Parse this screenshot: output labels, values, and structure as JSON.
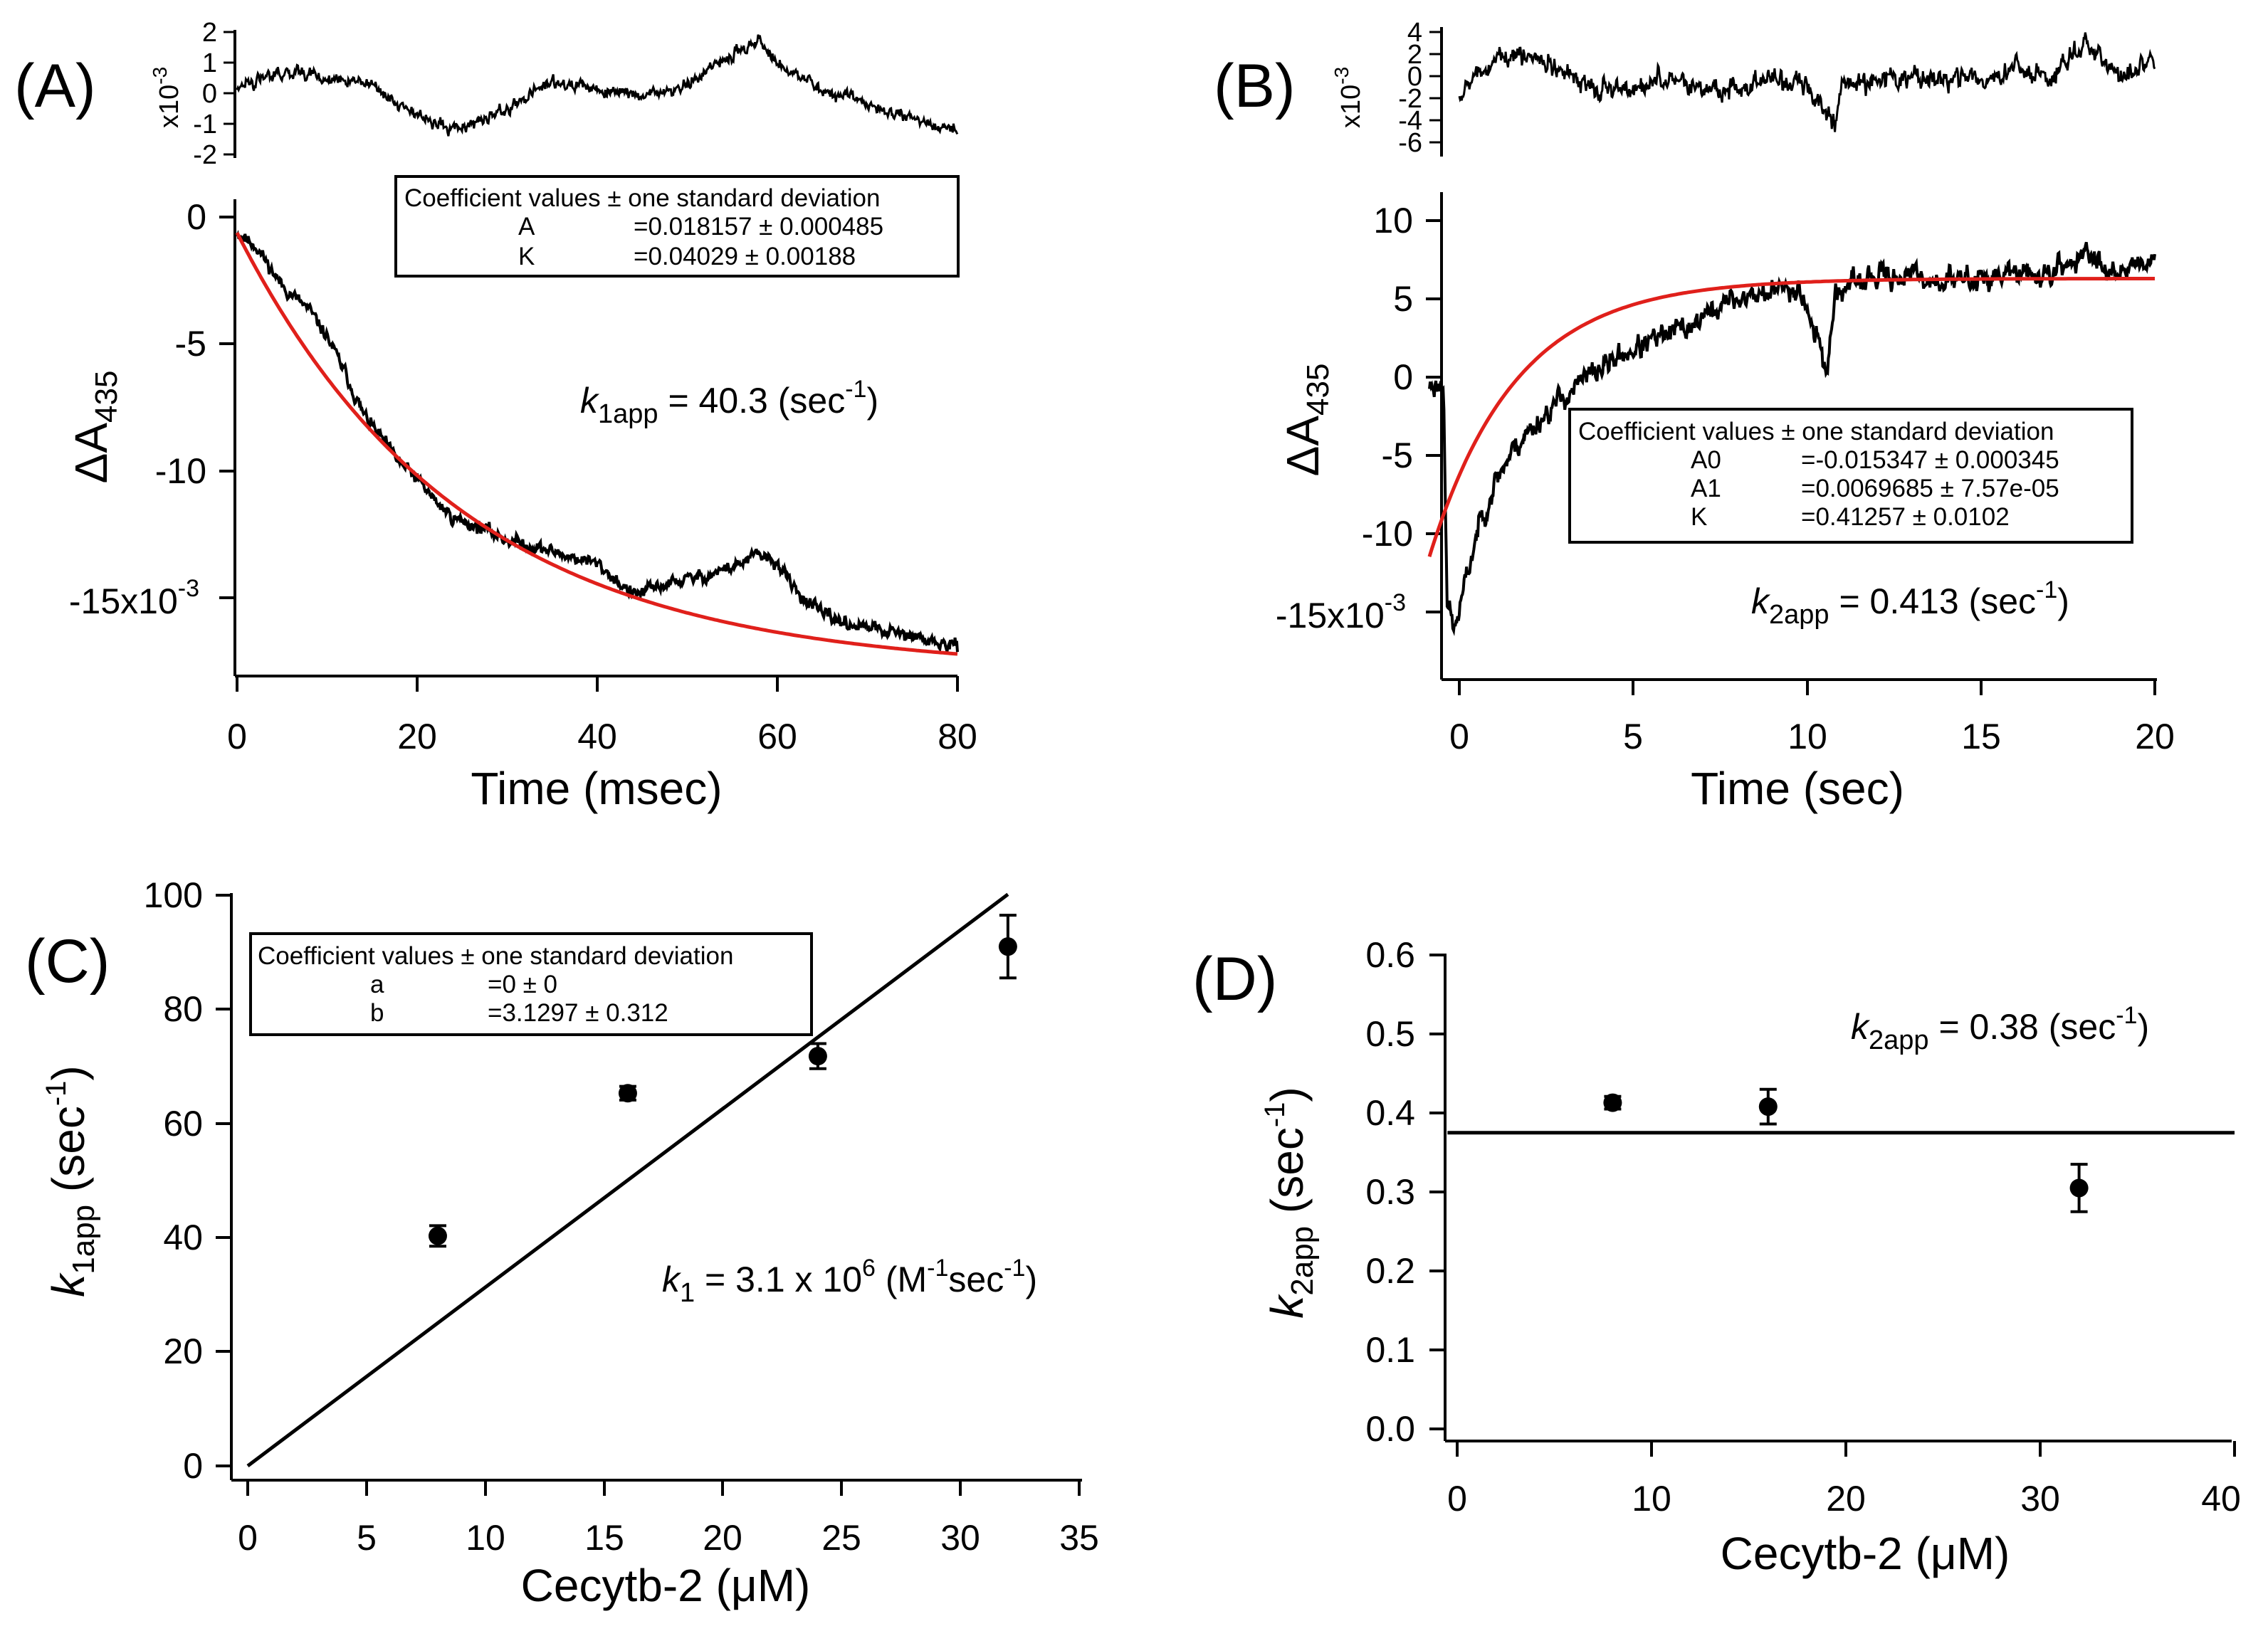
{
  "panels": {
    "A": {
      "label": "(A)",
      "resid_exp": "x10",
      "resid_exp_sup": "-3",
      "resid_ticks": [
        "2",
        "1",
        "0",
        "-1",
        "-2"
      ],
      "y_ticks": [
        "0",
        "-5",
        "-10"
      ],
      "y_tick_last": "-15x10",
      "y_tick_last_sup": "-3",
      "x_ticks": [
        "0",
        "20",
        "40",
        "60",
        "80"
      ],
      "xlabel": "Time (msec)",
      "ylabel_main": "ΔA",
      "ylabel_sub": "435",
      "box": {
        "header": "Coefficient values ± one standard deviation",
        "rows": [
          {
            "name": "A",
            "value": "=0.018157 ± 0.000485"
          },
          {
            "name": "K",
            "value": "=0.04029 ± 0.00188"
          }
        ]
      },
      "ann": {
        "k": "k",
        "sub": "1app",
        "mid": " = 40.3 (sec",
        "sup": "-1",
        "end": ")"
      }
    },
    "B": {
      "label": "(B)",
      "resid_exp": "x10",
      "resid_exp_sup": "-3",
      "resid_ticks": [
        "4",
        "2",
        "0",
        "-2",
        "-4",
        "-6"
      ],
      "y_ticks": [
        "10",
        "5",
        "0",
        "-5",
        "-10"
      ],
      "y_tick_last": "-15x10",
      "y_tick_last_sup": "-3",
      "x_ticks": [
        "0",
        "5",
        "10",
        "15",
        "20"
      ],
      "xlabel": "Time (sec)",
      "ylabel_main": "ΔA",
      "ylabel_sub": "435",
      "box": {
        "header": "Coefficient values ± one standard deviation",
        "rows": [
          {
            "name": "A0",
            "value": "=-0.015347 ± 0.000345"
          },
          {
            "name": "A1",
            "value": "=0.0069685 ± 7.57e-05"
          },
          {
            "name": "K",
            "value": "=0.41257 ± 0.0102"
          }
        ]
      },
      "ann": {
        "k": "k",
        "sub": "2app",
        "mid": " = 0.413 (sec",
        "sup": "-1",
        "end": ")"
      }
    },
    "C": {
      "label": "(C)",
      "y_ticks": [
        "100",
        "80",
        "60",
        "40",
        "20",
        "0"
      ],
      "x_ticks": [
        "0",
        "5",
        "10",
        "15",
        "20",
        "25",
        "30",
        "35"
      ],
      "xlabel": "Cecytb-2 (μM)",
      "ylabel_k": "k",
      "ylabel_sub": "1app",
      "ylabel_rest": " (sec",
      "ylabel_sup": "-1",
      "ylabel_end": ")",
      "box": {
        "header": "Coefficient values ± one standard deviation",
        "rows": [
          {
            "name": "a",
            "value": "=0 ± 0"
          },
          {
            "name": "b",
            "value": "=3.1297 ± 0.312"
          }
        ]
      },
      "ann": {
        "k": "k",
        "sub": "1",
        "mid": " = 3.1 x 10",
        "sup": "6",
        "mid2": " (M",
        "sup2": "-1",
        "mid3": "sec",
        "sup3": "-1",
        "end": ")"
      }
    },
    "D": {
      "label": "(D)",
      "y_ticks": [
        "0.6",
        "0.5",
        "0.4",
        "0.3",
        "0.2",
        "0.1",
        "0.0"
      ],
      "x_ticks": [
        "0",
        "10",
        "20",
        "30",
        "40"
      ],
      "xlabel": "Cecytb-2 (μM)",
      "ylabel_k": "k",
      "ylabel_sub": "2app",
      "ylabel_rest": " (sec",
      "ylabel_sup": "-1",
      "ylabel_end": ")",
      "ann": {
        "k": "k",
        "sub": "2app",
        "mid": " = 0.38 (sec",
        "sup": "-1",
        "end": ")"
      }
    }
  },
  "colors": {
    "data": "#000000",
    "fit": "#e0201b"
  },
  "chart_data": [
    {
      "panel": "A",
      "type": "line",
      "xlabel": "Time (msec)",
      "ylabel": "ΔA435",
      "xlim": [
        0,
        80
      ],
      "ylim": [
        -0.0182,
        0.0005
      ],
      "fit": {
        "model": "A*(exp(-K*t)-1)",
        "A": 0.018157,
        "K": 0.04029
      },
      "trace_keypoints": {
        "x": [
          0,
          2,
          5,
          8,
          10,
          12,
          14,
          16,
          18,
          20,
          22,
          24,
          27,
          30,
          35,
          40,
          44,
          48,
          52,
          56,
          58,
          60,
          62,
          65,
          68,
          72,
          76,
          80
        ],
        "y": [
          0,
          -0.0005,
          -0.0022,
          -0.0032,
          -0.0043,
          -0.0058,
          -0.0075,
          -0.0085,
          -0.0095,
          -0.0102,
          -0.0111,
          -0.0118,
          -0.0122,
          -0.0127,
          -0.0132,
          -0.0137,
          -0.015,
          -0.0145,
          -0.0142,
          -0.0137,
          -0.0133,
          -0.0137,
          -0.0148,
          -0.0158,
          -0.0162,
          -0.0165,
          -0.0168,
          -0.0172
        ]
      },
      "residual": {
        "ylim": [
          -2.2,
          2.4
        ],
        "unit": "x10^-3",
        "x": [
          0,
          5,
          10,
          15,
          20,
          25,
          30,
          35,
          40,
          45,
          50,
          55,
          58,
          60,
          65,
          70,
          75,
          80
        ],
        "y": [
          0.4,
          0.8,
          0.6,
          0.4,
          -0.7,
          -1.2,
          -0.5,
          0.5,
          0.2,
          0,
          0.4,
          1.5,
          1.9,
          1.2,
          0.2,
          -0.3,
          -0.8,
          -1.2
        ]
      }
    },
    {
      "panel": "B",
      "type": "line",
      "xlabel": "Time (sec)",
      "ylabel": "ΔA435",
      "xlim": [
        -0.4,
        20
      ],
      "ylim": [
        -0.019,
        0.0125
      ],
      "fit": {
        "model": "A0*exp(-K*t)+A1",
        "A0": -0.015347,
        "A1": 0.0069685,
        "K": 0.41257
      },
      "trace_keypoints": {
        "x": [
          -0.4,
          0,
          0.1,
          0.3,
          0.6,
          1,
          1.5,
          2,
          3,
          4,
          5,
          6,
          7,
          8,
          9,
          10,
          10.8,
          11,
          12,
          13,
          14,
          15,
          16,
          17,
          18,
          19,
          20
        ],
        "y": [
          0.0,
          0.0,
          -0.014,
          -0.016,
          -0.013,
          -0.009,
          -0.006,
          -0.004,
          -0.0015,
          0.0005,
          0.002,
          0.003,
          0.004,
          0.0055,
          0.006,
          0.0065,
          0.001,
          0.006,
          0.007,
          0.0072,
          0.0068,
          0.007,
          0.0073,
          0.0072,
          0.0085,
          0.0075,
          0.0085
        ]
      },
      "residual": {
        "ylim": [
          -6.8,
          4.5
        ],
        "unit": "x10^-3",
        "x": [
          0,
          1,
          2,
          3,
          4,
          5,
          6,
          7,
          8,
          9,
          10,
          10.8,
          11,
          12,
          13,
          14,
          15,
          16,
          17,
          18,
          19,
          20
        ],
        "y": [
          -1,
          1.5,
          2,
          1,
          -1,
          -0.5,
          0,
          -1,
          -1,
          0,
          -0.5,
          -4,
          -0.5,
          0,
          0,
          0,
          0,
          1,
          0,
          3,
          0,
          2
        ]
      }
    },
    {
      "panel": "C",
      "type": "scatter",
      "xlabel": "Cecytb-2 (μM)",
      "ylabel": "k1app (sec-1)",
      "xlim": [
        -0.5,
        35
      ],
      "ylim": [
        0,
        100
      ],
      "x": [
        8,
        16,
        24,
        32
      ],
      "y": [
        40.3,
        65.3,
        71.8,
        91.0
      ],
      "yerr": [
        1.8,
        1.2,
        2.2,
        5.5
      ],
      "fit": {
        "model": "a + b*x",
        "a": 0,
        "b": 3.1297,
        "x_range": [
          0,
          32
        ]
      }
    },
    {
      "panel": "D",
      "type": "scatter",
      "xlabel": "Cecytb-2 (μM)",
      "ylabel": "k2app (sec-1)",
      "xlim": [
        -0.5,
        40
      ],
      "ylim": [
        -0.01,
        0.6
      ],
      "x": [
        8,
        16,
        32
      ],
      "y": [
        0.413,
        0.408,
        0.305
      ],
      "yerr": [
        0.008,
        0.022,
        0.03
      ],
      "fit": {
        "model": "constant",
        "value": 0.375,
        "x_range": [
          -0.5,
          40
        ]
      }
    }
  ]
}
